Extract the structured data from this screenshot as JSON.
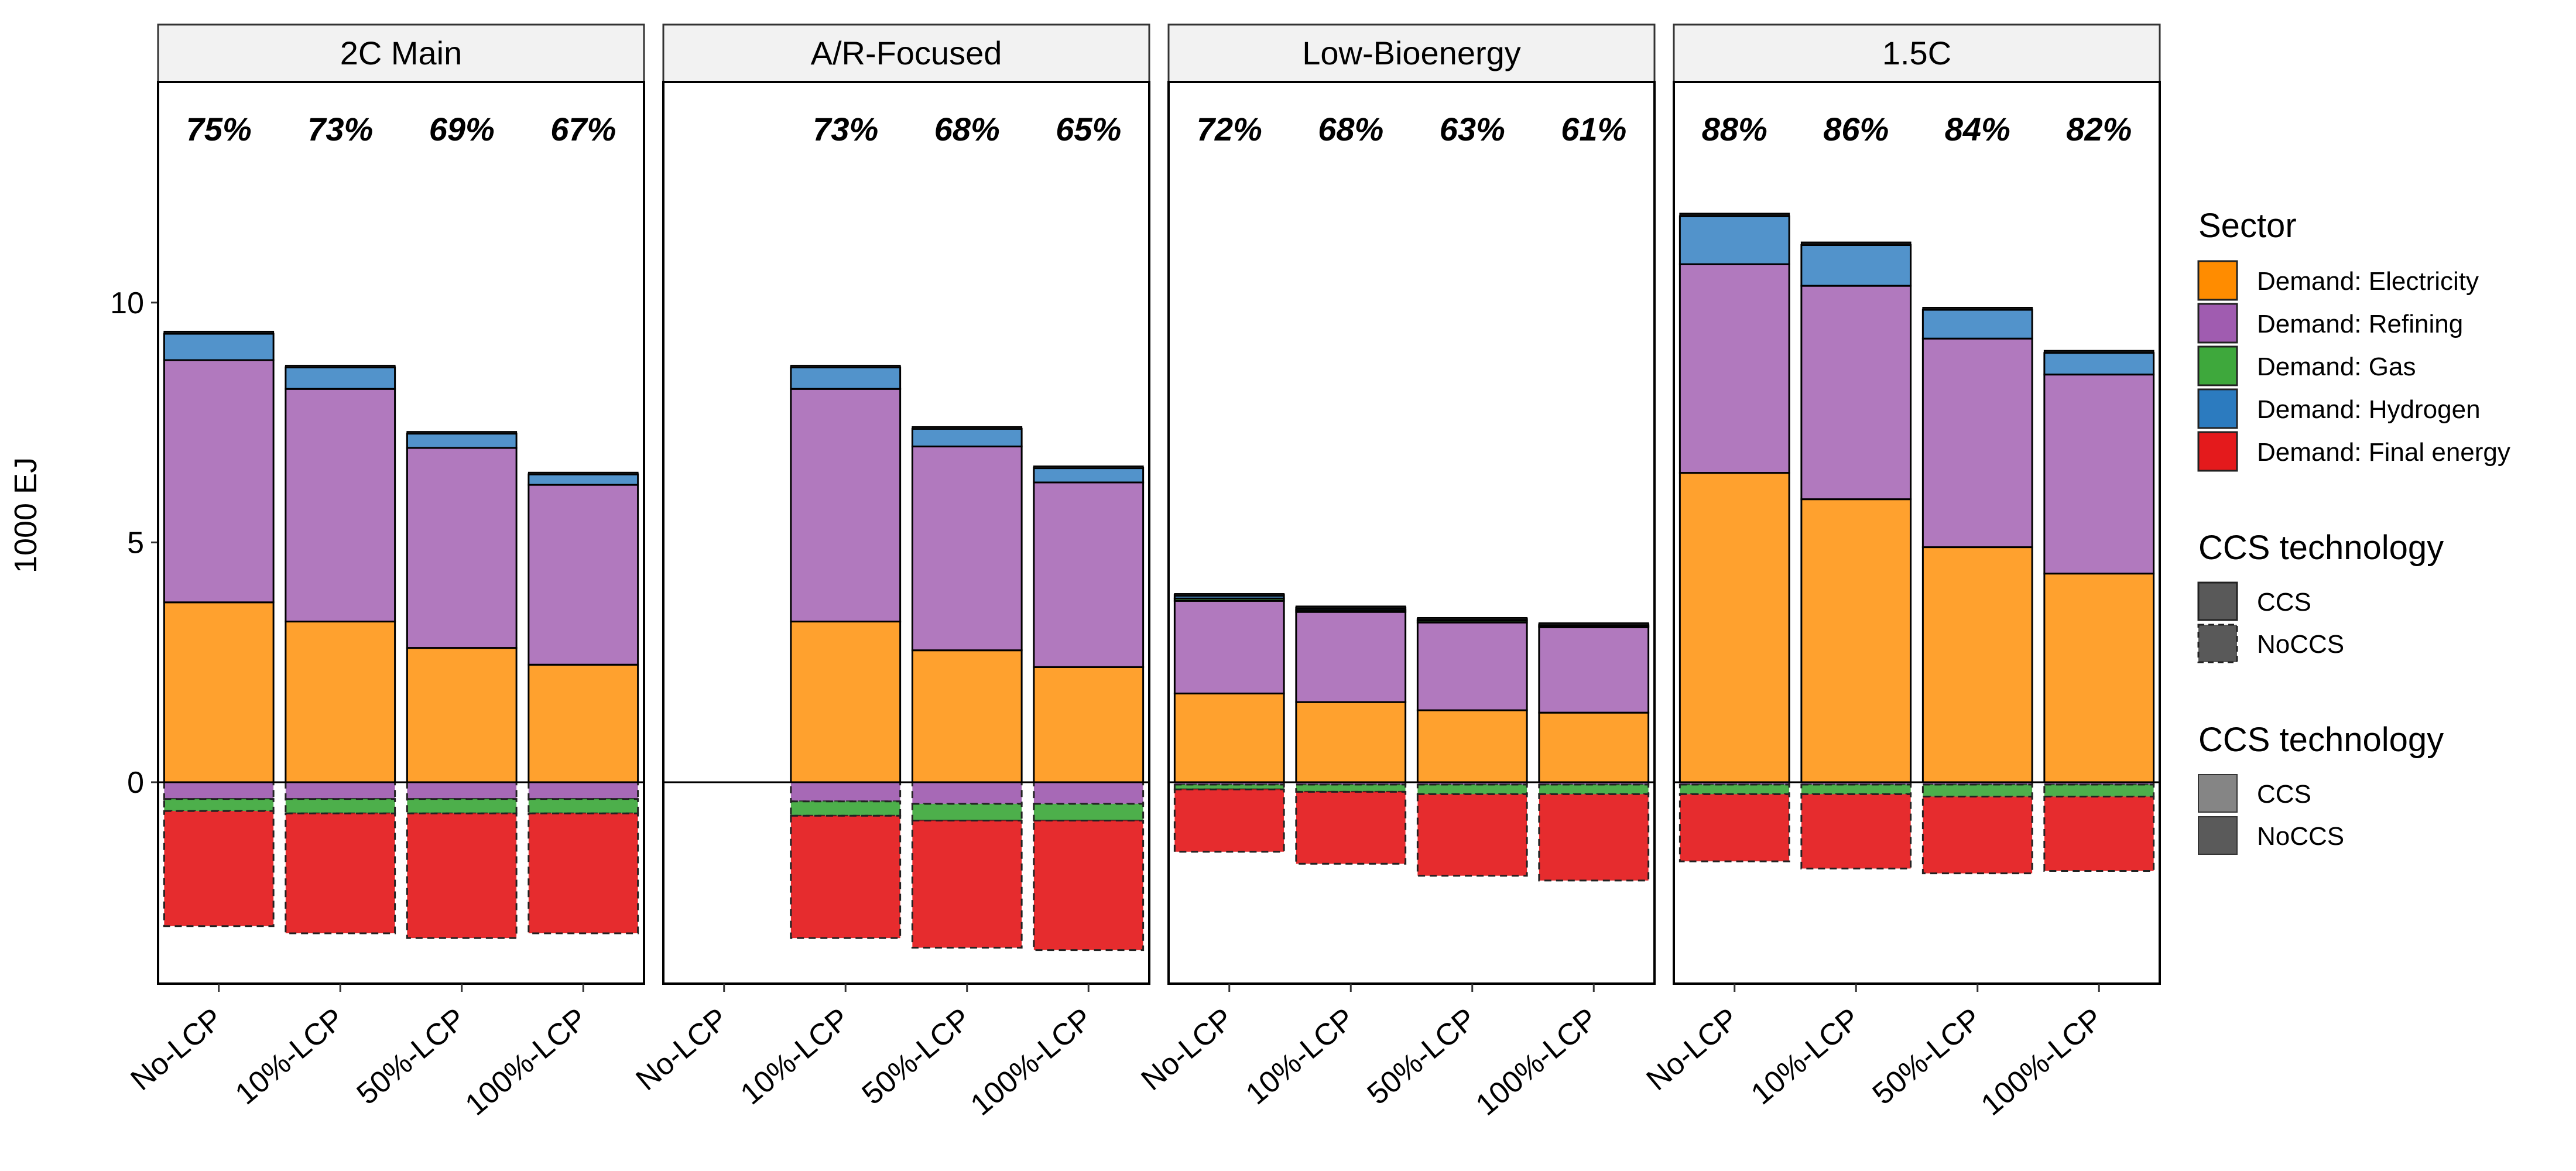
{
  "chart_data": {
    "type": "bar",
    "stacked": true,
    "ylabel": "1000 EJ",
    "ylim": [
      -4.2,
      14.6
    ],
    "yticks": [
      0,
      5,
      10
    ],
    "categories": [
      "No-LCP",
      "10%-LCP",
      "50%-LCP",
      "100%-LCP"
    ],
    "panels": [
      {
        "title": "2C Main",
        "percent_labels": [
          "75%",
          "73%",
          "69%",
          "67%"
        ],
        "bars": [
          {
            "pos": {
              "Demand: Electricity": 3.75,
              "Demand: Refining": 5.05,
              "Demand: Gas": 0.0,
              "Demand: Hydrogen": 0.55,
              "black": 0.05
            },
            "neg": {
              "Demand: Electricity": 0.0,
              "Demand: Refining": 0.35,
              "Demand: Gas": 0.25,
              "Demand: Final energy": 2.4
            }
          },
          {
            "pos": {
              "Demand: Electricity": 3.35,
              "Demand: Refining": 4.85,
              "Demand: Gas": 0.0,
              "Demand: Hydrogen": 0.45,
              "black": 0.04
            },
            "neg": {
              "Demand: Electricity": 0.0,
              "Demand: Refining": 0.35,
              "Demand: Gas": 0.3,
              "Demand: Final energy": 2.5
            }
          },
          {
            "pos": {
              "Demand: Electricity": 2.8,
              "Demand: Refining": 4.17,
              "Demand: Gas": 0.0,
              "Demand: Hydrogen": 0.3,
              "black": 0.04
            },
            "neg": {
              "Demand: Electricity": 0.0,
              "Demand: Refining": 0.35,
              "Demand: Gas": 0.3,
              "Demand: Final energy": 2.6
            }
          },
          {
            "pos": {
              "Demand: Electricity": 2.45,
              "Demand: Refining": 3.75,
              "Demand: Gas": 0.0,
              "Demand: Hydrogen": 0.22,
              "black": 0.04
            },
            "neg": {
              "Demand: Electricity": 0.0,
              "Demand: Refining": 0.35,
              "Demand: Gas": 0.3,
              "Demand: Final energy": 2.5
            }
          }
        ]
      },
      {
        "title": "A/R-Focused",
        "percent_labels": [
          "",
          "73%",
          "68%",
          "65%"
        ],
        "bars": [
          null,
          {
            "pos": {
              "Demand: Electricity": 3.35,
              "Demand: Refining": 4.85,
              "Demand: Gas": 0.0,
              "Demand: Hydrogen": 0.45,
              "black": 0.04
            },
            "neg": {
              "Demand: Electricity": 0.0,
              "Demand: Refining": 0.4,
              "Demand: Gas": 0.3,
              "Demand: Final energy": 2.55
            }
          },
          {
            "pos": {
              "Demand: Electricity": 2.75,
              "Demand: Refining": 4.25,
              "Demand: Gas": 0.0,
              "Demand: Hydrogen": 0.37,
              "black": 0.04
            },
            "neg": {
              "Demand: Electricity": 0.0,
              "Demand: Refining": 0.45,
              "Demand: Gas": 0.35,
              "Demand: Final energy": 2.65
            }
          },
          {
            "pos": {
              "Demand: Electricity": 2.4,
              "Demand: Refining": 3.85,
              "Demand: Gas": 0.0,
              "Demand: Hydrogen": 0.3,
              "black": 0.04
            },
            "neg": {
              "Demand: Electricity": 0.0,
              "Demand: Refining": 0.45,
              "Demand: Gas": 0.35,
              "Demand: Final energy": 2.7
            }
          }
        ]
      },
      {
        "title": "Low-Bioenergy",
        "percent_labels": [
          "72%",
          "68%",
          "63%",
          "61%"
        ],
        "bars": [
          {
            "pos": {
              "Demand: Electricity": 1.85,
              "Demand: Refining": 1.93,
              "Demand: Gas": 0.05,
              "Demand: Hydrogen": 0.07,
              "black": 0.03
            },
            "neg": {
              "Demand: Electricity": 0.0,
              "Demand: Refining": 0.05,
              "Demand: Gas": 0.1,
              "Demand: Final energy": 1.3
            }
          },
          {
            "pos": {
              "Demand: Electricity": 1.67,
              "Demand: Refining": 1.88,
              "Demand: Gas": 0.04,
              "Demand: Hydrogen": 0.05,
              "black": 0.03
            },
            "neg": {
              "Demand: Electricity": 0.0,
              "Demand: Refining": 0.05,
              "Demand: Gas": 0.15,
              "Demand: Final energy": 1.5
            }
          },
          {
            "pos": {
              "Demand: Electricity": 1.5,
              "Demand: Refining": 1.83,
              "Demand: Gas": 0.04,
              "Demand: Hydrogen": 0.03,
              "black": 0.03
            },
            "neg": {
              "Demand: Electricity": 0.0,
              "Demand: Refining": 0.05,
              "Demand: Gas": 0.2,
              "Demand: Final energy": 1.7
            }
          },
          {
            "pos": {
              "Demand: Electricity": 1.45,
              "Demand: Refining": 1.78,
              "Demand: Gas": 0.03,
              "Demand: Hydrogen": 0.03,
              "black": 0.03
            },
            "neg": {
              "Demand: Electricity": 0.0,
              "Demand: Refining": 0.05,
              "Demand: Gas": 0.2,
              "Demand: Final energy": 1.8
            }
          }
        ]
      },
      {
        "title": "1.5C",
        "percent_labels": [
          "88%",
          "86%",
          "84%",
          "82%"
        ],
        "bars": [
          {
            "pos": {
              "Demand: Electricity": 6.45,
              "Demand: Refining": 4.35,
              "Demand: Gas": 0.0,
              "Demand: Hydrogen": 1.0,
              "black": 0.06
            },
            "neg": {
              "Demand: Electricity": 0.0,
              "Demand: Refining": 0.05,
              "Demand: Gas": 0.2,
              "Demand: Final energy": 1.4
            }
          },
          {
            "pos": {
              "Demand: Electricity": 5.9,
              "Demand: Refining": 4.45,
              "Demand: Gas": 0.0,
              "Demand: Hydrogen": 0.85,
              "black": 0.06
            },
            "neg": {
              "Demand: Electricity": 0.0,
              "Demand: Refining": 0.05,
              "Demand: Gas": 0.2,
              "Demand: Final energy": 1.55
            }
          },
          {
            "pos": {
              "Demand: Electricity": 4.9,
              "Demand: Refining": 4.35,
              "Demand: Gas": 0.0,
              "Demand: Hydrogen": 0.6,
              "black": 0.05
            },
            "neg": {
              "Demand: Electricity": 0.0,
              "Demand: Refining": 0.05,
              "Demand: Gas": 0.25,
              "Demand: Final energy": 1.6
            }
          },
          {
            "pos": {
              "Demand: Electricity": 4.35,
              "Demand: Refining": 4.15,
              "Demand: Gas": 0.0,
              "Demand: Hydrogen": 0.45,
              "black": 0.05
            },
            "neg": {
              "Demand: Electricity": 0.0,
              "Demand: Refining": 0.05,
              "Demand: Gas": 0.25,
              "Demand: Final energy": 1.55
            }
          }
        ]
      }
    ],
    "legend": {
      "placement": "right",
      "sector_title": "Sector",
      "sector_items": [
        {
          "label": "Demand: Electricity",
          "color": "#FF8C00"
        },
        {
          "label": "Demand: Refining",
          "color": "#A05CB0"
        },
        {
          "label": "Demand: Gas",
          "color": "#3EA83C"
        },
        {
          "label": "Demand: Hydrogen",
          "color": "#2C7BBF"
        },
        {
          "label": "Demand: Final energy",
          "color": "#E41A1C"
        }
      ],
      "linetype_title": "CCS technology",
      "linetype_items": [
        "CCS",
        "NoCCS"
      ],
      "alpha_title": "CCS technology",
      "alpha_items": [
        "CCS",
        "NoCCS"
      ]
    }
  }
}
